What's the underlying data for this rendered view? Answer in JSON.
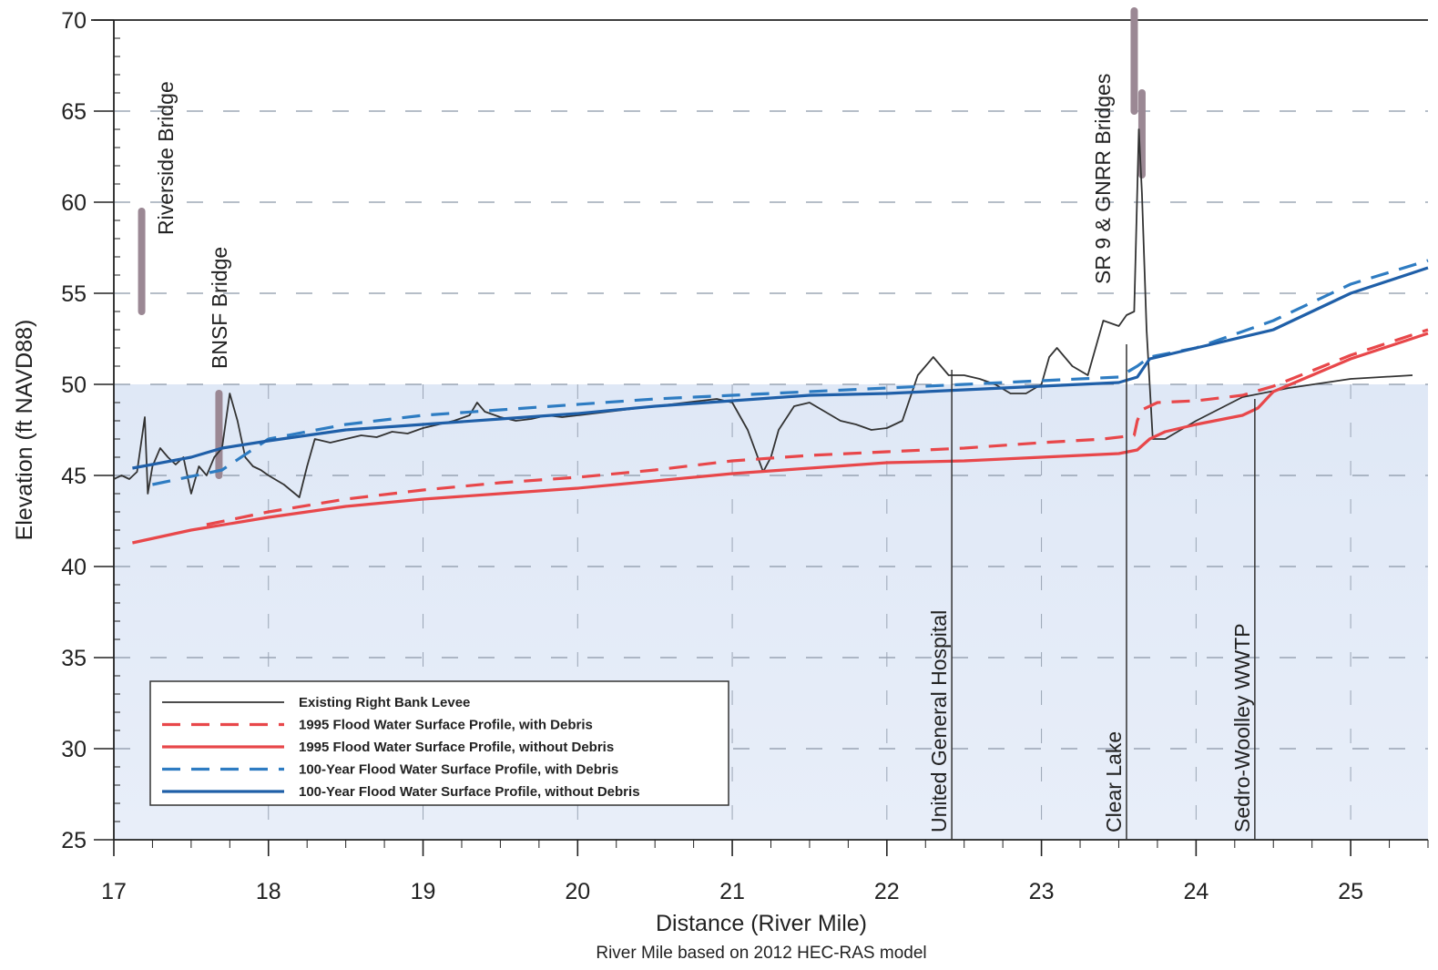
{
  "chart_data": {
    "type": "line",
    "xlabel": "Distance (River Mile)",
    "ylabel": "Elevation (ft NAVD88)",
    "subtitle": "River Mile based on 2012 HEC-RAS model",
    "xlim": [
      17,
      25.5
    ],
    "ylim": [
      25,
      70
    ],
    "xticks": [
      17,
      18,
      19,
      20,
      21,
      22,
      23,
      24,
      25
    ],
    "yticks": [
      25,
      30,
      35,
      40,
      45,
      50,
      55,
      60,
      65,
      70
    ],
    "grid": "dashed",
    "legend_position": "bottom-left",
    "series": [
      {
        "name": "Existing Right Bank Levee",
        "color": "#333333",
        "style": "solid",
        "x": [
          17.0,
          17.05,
          17.1,
          17.15,
          17.2,
          17.22,
          17.25,
          17.3,
          17.35,
          17.4,
          17.45,
          17.5,
          17.55,
          17.6,
          17.65,
          17.7,
          17.75,
          17.8,
          17.85,
          17.9,
          17.95,
          18.0,
          18.1,
          18.2,
          18.25,
          18.3,
          18.4,
          18.5,
          18.6,
          18.7,
          18.8,
          18.9,
          19.0,
          19.1,
          19.2,
          19.3,
          19.35,
          19.4,
          19.5,
          19.6,
          19.7,
          19.8,
          19.9,
          20.0,
          20.1,
          20.2,
          20.3,
          20.4,
          20.5,
          20.6,
          20.7,
          20.8,
          20.9,
          21.0,
          21.1,
          21.2,
          21.25,
          21.3,
          21.4,
          21.5,
          21.6,
          21.7,
          21.8,
          21.9,
          22.0,
          22.1,
          22.2,
          22.3,
          22.4,
          22.5,
          22.6,
          22.7,
          22.8,
          22.9,
          23.0,
          23.05,
          23.1,
          23.2,
          23.3,
          23.4,
          23.5,
          23.55,
          23.6,
          23.63,
          23.65,
          23.68,
          23.72,
          23.8,
          24.0,
          24.3,
          24.6,
          25.0,
          25.4
        ],
        "y": [
          44.8,
          45.0,
          44.8,
          45.2,
          48.2,
          44.0,
          45.5,
          46.5,
          46.0,
          45.6,
          46.0,
          44.0,
          45.5,
          45.0,
          46.0,
          46.5,
          49.5,
          48.0,
          46.0,
          45.5,
          45.3,
          45.0,
          44.5,
          43.8,
          45.5,
          47.0,
          46.8,
          47.0,
          47.2,
          47.1,
          47.4,
          47.3,
          47.6,
          47.8,
          48.0,
          48.3,
          49.0,
          48.5,
          48.2,
          48.0,
          48.1,
          48.3,
          48.2,
          48.3,
          48.4,
          48.5,
          48.6,
          48.7,
          48.8,
          48.9,
          49.0,
          49.1,
          49.2,
          49.0,
          47.5,
          45.2,
          46.0,
          47.5,
          48.8,
          49.0,
          48.5,
          48.0,
          47.8,
          47.5,
          47.6,
          48.0,
          50.5,
          51.5,
          50.5,
          50.5,
          50.3,
          50.0,
          49.5,
          49.5,
          50.0,
          51.5,
          52.0,
          51.0,
          50.5,
          53.5,
          53.2,
          53.8,
          54.0,
          64.0,
          60.5,
          53.0,
          47.0,
          47.0,
          48.0,
          49.3,
          49.8,
          50.3,
          50.5
        ]
      },
      {
        "name": "1995 Flood Water Surface Profile, with Debris",
        "color": "#e8474a",
        "style": "dashed",
        "x": [
          17.6,
          18.0,
          18.5,
          19.0,
          19.5,
          20.0,
          20.5,
          21.0,
          21.5,
          22.0,
          22.5,
          23.0,
          23.4,
          23.6,
          23.62,
          23.65,
          23.75,
          24.0,
          24.3,
          24.5,
          25.0,
          25.5
        ],
        "y": [
          42.3,
          43.0,
          43.7,
          44.2,
          44.6,
          44.9,
          45.3,
          45.8,
          46.1,
          46.3,
          46.5,
          46.8,
          47.0,
          47.2,
          48.0,
          48.6,
          49.0,
          49.1,
          49.4,
          49.9,
          51.6,
          53.0
        ]
      },
      {
        "name": "1995 Flood Water Surface Profile, without Debris",
        "color": "#e8474a",
        "style": "solid",
        "x": [
          17.12,
          17.5,
          18.0,
          18.5,
          19.0,
          19.5,
          20.0,
          20.5,
          21.0,
          21.5,
          22.0,
          22.5,
          23.0,
          23.5,
          23.62,
          23.7,
          23.8,
          24.0,
          24.3,
          24.4,
          24.5,
          25.0,
          25.5
        ],
        "y": [
          41.3,
          42.0,
          42.7,
          43.3,
          43.7,
          44.0,
          44.3,
          44.7,
          45.1,
          45.4,
          45.7,
          45.8,
          46.0,
          46.2,
          46.4,
          47.0,
          47.4,
          47.8,
          48.3,
          48.7,
          49.6,
          51.4,
          52.8
        ]
      },
      {
        "name": "100-Year Flood Water Surface Profile, with Debris",
        "color": "#2e7cc2",
        "style": "dashed",
        "x": [
          17.25,
          17.7,
          18.0,
          18.5,
          19.0,
          19.5,
          20.0,
          20.5,
          21.0,
          21.5,
          22.0,
          22.5,
          23.0,
          23.5,
          23.62,
          23.7,
          24.0,
          24.5,
          25.0,
          25.5
        ],
        "y": [
          44.5,
          45.3,
          47.0,
          47.8,
          48.3,
          48.6,
          48.9,
          49.2,
          49.4,
          49.6,
          49.8,
          50.0,
          50.2,
          50.4,
          51.0,
          51.5,
          52.0,
          53.5,
          55.5,
          56.8
        ]
      },
      {
        "name": "100-Year Flood Water Surface Profile, without Debris",
        "color": "#1f5fa8",
        "style": "solid",
        "x": [
          17.12,
          17.5,
          17.7,
          18.0,
          18.5,
          19.0,
          19.5,
          20.0,
          20.5,
          21.0,
          21.5,
          22.0,
          22.5,
          23.0,
          23.5,
          23.62,
          23.7,
          24.0,
          24.5,
          25.0,
          25.5
        ],
        "y": [
          45.4,
          46.0,
          46.5,
          46.9,
          47.5,
          47.8,
          48.1,
          48.4,
          48.8,
          49.1,
          49.4,
          49.5,
          49.7,
          49.9,
          50.1,
          50.4,
          51.4,
          52.0,
          53.0,
          55.0,
          56.4
        ]
      }
    ],
    "bridges": [
      {
        "label": "Riverside Bridge",
        "x": 17.18,
        "y_low": 54,
        "y_high": 59.5
      },
      {
        "label": "BNSF Bridge",
        "x": 17.68,
        "y_low": 45,
        "y_high": 49.5
      },
      {
        "label": "SR 9 & GNRR Bridges",
        "x": 23.6,
        "y_low": 65,
        "y_high": 70.5
      },
      {
        "label": "",
        "x": 23.65,
        "y_low": 61.5,
        "y_high": 66
      }
    ],
    "location_markers": [
      {
        "label": "United General Hospital",
        "x": 22.42,
        "y_top": 50.8
      },
      {
        "label": "Clear Lake",
        "x": 23.55,
        "y_top": 52.2
      },
      {
        "label": "Sedro-Woolley WWTP",
        "x": 24.38,
        "y_top": 49.2
      }
    ]
  }
}
